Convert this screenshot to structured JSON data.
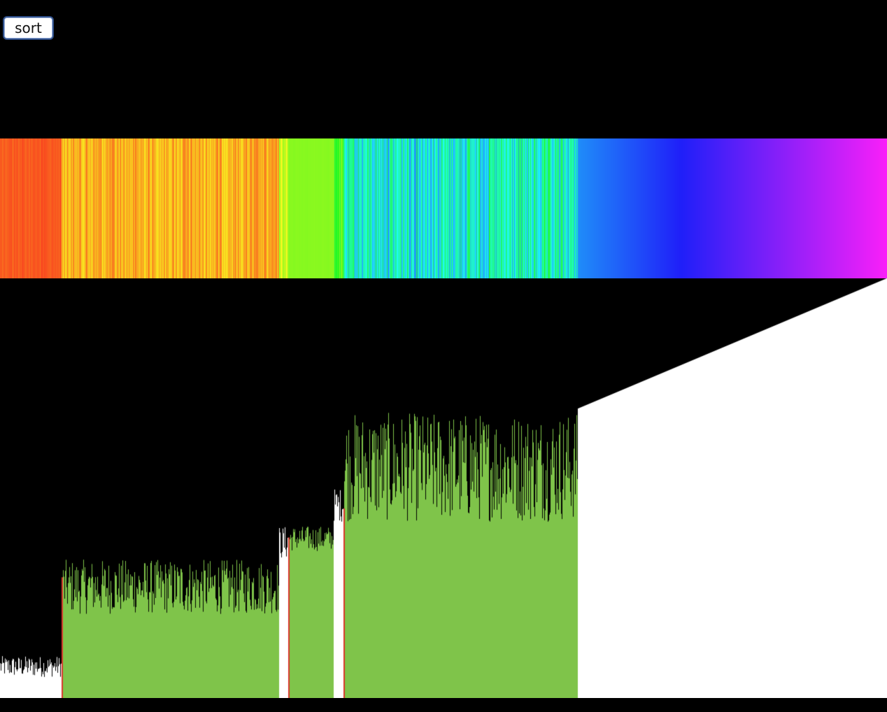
{
  "controls": {
    "sort_label": "sort"
  },
  "colors": {
    "background": "#000000",
    "bar_default": "#ffffff",
    "bar_highlight": "#7fc44a",
    "bar_pivot": "#d9362b",
    "button_border": "#2f4f8a"
  },
  "chart_data": {
    "type": "bar",
    "title": "",
    "xlabel": "",
    "ylabel": "",
    "item_count": 1268,
    "ylim": [
      0,
      1
    ],
    "hue_range_degrees": [
      10,
      300
    ],
    "segments": [
      {
        "name": "unsorted-white-low",
        "start": 0,
        "end": 88,
        "state": "default",
        "value_range": [
          0.05,
          0.1
        ],
        "hue_range": [
          10,
          22
        ]
      },
      {
        "name": "active-partition-1",
        "start": 88,
        "end": 399,
        "state": "highlight",
        "value_range": [
          0.2,
          0.33
        ],
        "hue_range": [
          22,
          58
        ]
      },
      {
        "name": "pivot-region-white",
        "start": 399,
        "end": 412,
        "state": "default",
        "value_range": [
          0.33,
          0.41
        ],
        "hue_range": [
          58,
          90
        ]
      },
      {
        "name": "active-partition-2",
        "start": 412,
        "end": 477,
        "state": "highlight",
        "value_range": [
          0.35,
          0.41
        ],
        "hue_range": [
          90,
          92
        ]
      },
      {
        "name": "pivot-region-white-2",
        "start": 477,
        "end": 491,
        "state": "default",
        "value_range": [
          0.42,
          0.5
        ],
        "hue_range": [
          92,
          130
        ]
      },
      {
        "name": "active-partition-3",
        "start": 491,
        "end": 826,
        "state": "highlight",
        "value_range": [
          0.42,
          0.68
        ],
        "hue_range": [
          130,
          210
        ]
      },
      {
        "name": "sorted-tail",
        "start": 826,
        "end": 1268,
        "state": "sorted",
        "value_range": [
          0.69,
          1.0
        ],
        "hue_range": [
          210,
          300
        ]
      }
    ],
    "pivots": [
      88,
      412,
      491
    ]
  }
}
